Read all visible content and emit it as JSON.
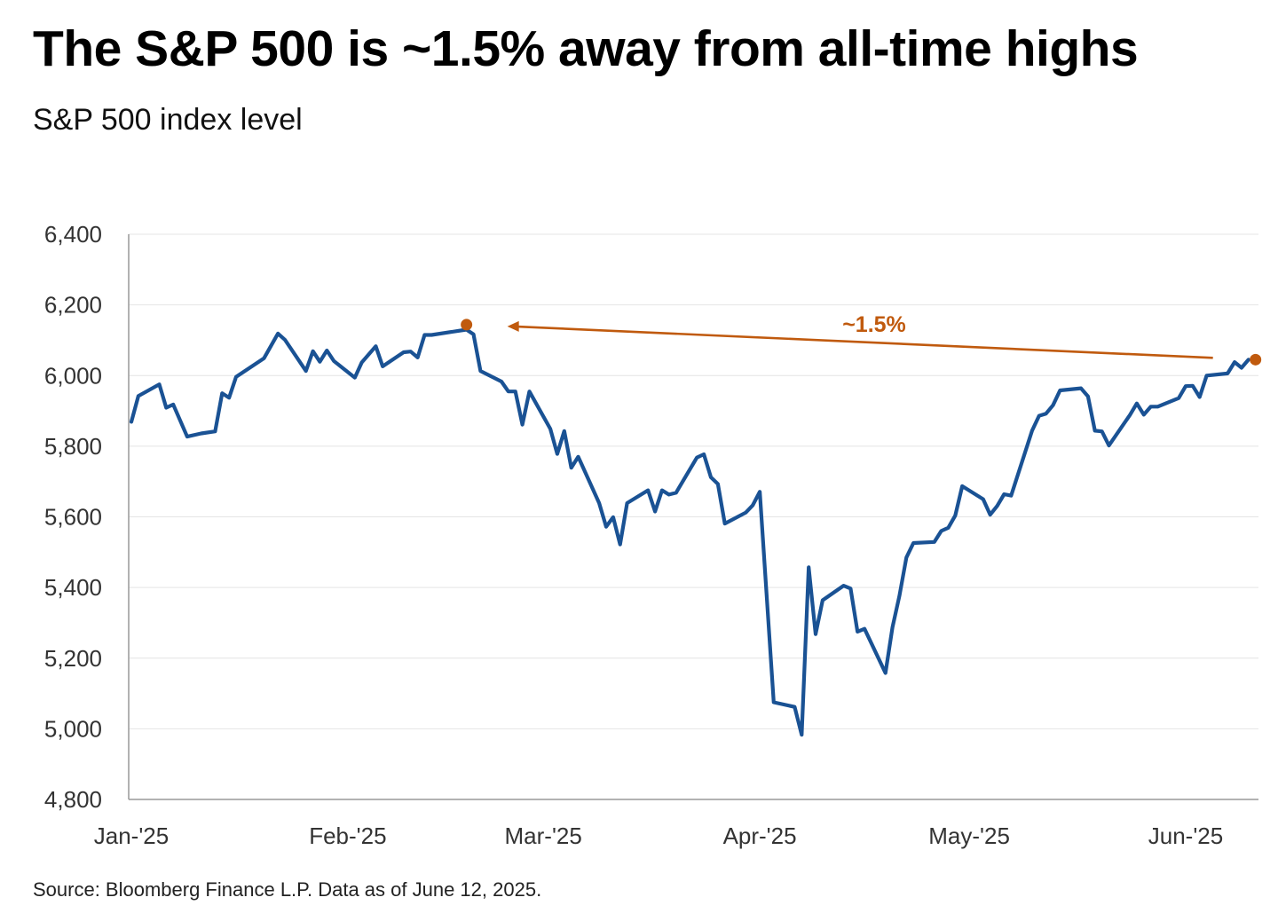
{
  "header": {
    "title": "The S&P 500 is ~1.5% away from all-time highs",
    "subtitle": "S&P 500 index level"
  },
  "footer": {
    "source": "Source: Bloomberg Finance L.P. Data as of June 12, 2025."
  },
  "colors": {
    "line": "#1a5294",
    "accent": "#c05a0e",
    "grid": "#e4e4e4",
    "axis": "#999999"
  },
  "chart_data": {
    "type": "line",
    "title": "The S&P 500 is ~1.5% away from all-time highs",
    "ylabel": "S&P 500 index level",
    "ylim": [
      4800,
      6400
    ],
    "yticks": [
      4800,
      5000,
      5200,
      5400,
      5600,
      5800,
      6000,
      6200,
      6400
    ],
    "ytick_labels": [
      "4,800",
      "5,000",
      "5,200",
      "5,400",
      "5,600",
      "5,800",
      "6,000",
      "6,200",
      "6,400"
    ],
    "x_range_days": [
      0,
      162
    ],
    "xticks": [
      {
        "day": 0,
        "label": "Jan-'25"
      },
      {
        "day": 31,
        "label": "Feb-'25"
      },
      {
        "day": 59,
        "label": "Mar-'25"
      },
      {
        "day": 90,
        "label": "Apr-'25"
      },
      {
        "day": 120,
        "label": "May-'25"
      },
      {
        "day": 151,
        "label": "Jun-'25"
      }
    ],
    "series": [
      {
        "name": "S&P 500",
        "points": [
          [
            0,
            5869
          ],
          [
            1,
            5942
          ],
          [
            4,
            5975
          ],
          [
            5,
            5909
          ],
          [
            6,
            5918
          ],
          [
            8,
            5827
          ],
          [
            10,
            5836
          ],
          [
            12,
            5842
          ],
          [
            13,
            5950
          ],
          [
            14,
            5937
          ],
          [
            15,
            5996
          ],
          [
            19,
            6049
          ],
          [
            21,
            6119
          ],
          [
            22,
            6101
          ],
          [
            25,
            6013
          ],
          [
            26,
            6069
          ],
          [
            27,
            6039
          ],
          [
            28,
            6071
          ],
          [
            29,
            6041
          ],
          [
            32,
            5994
          ],
          [
            33,
            6037
          ],
          [
            35,
            6083
          ],
          [
            36,
            6026
          ],
          [
            39,
            6066
          ],
          [
            40,
            6068
          ],
          [
            41,
            6051
          ],
          [
            42,
            6115
          ],
          [
            43,
            6115
          ],
          [
            48,
            6130
          ],
          [
            49,
            6117
          ],
          [
            50,
            6013
          ],
          [
            53,
            5983
          ],
          [
            54,
            5955
          ],
          [
            55,
            5955
          ],
          [
            56,
            5861
          ],
          [
            57,
            5955
          ],
          [
            60,
            5849
          ],
          [
            61,
            5778
          ],
          [
            62,
            5843
          ],
          [
            63,
            5739
          ],
          [
            64,
            5770
          ],
          [
            67,
            5639
          ],
          [
            68,
            5572
          ],
          [
            69,
            5599
          ],
          [
            70,
            5522
          ],
          [
            71,
            5639
          ],
          [
            74,
            5675
          ],
          [
            75,
            5615
          ],
          [
            76,
            5675
          ],
          [
            77,
            5663
          ],
          [
            78,
            5668
          ],
          [
            81,
            5768
          ],
          [
            82,
            5777
          ],
          [
            83,
            5712
          ],
          [
            84,
            5693
          ],
          [
            85,
            5581
          ],
          [
            88,
            5612
          ],
          [
            89,
            5633
          ],
          [
            90,
            5671
          ],
          [
            92,
            5075
          ],
          [
            95,
            5062
          ],
          [
            96,
            4983
          ],
          [
            97,
            5457
          ],
          [
            98,
            5268
          ],
          [
            99,
            5364
          ],
          [
            102,
            5405
          ],
          [
            103,
            5397
          ],
          [
            104,
            5275
          ],
          [
            105,
            5283
          ],
          [
            108,
            5158
          ],
          [
            109,
            5287
          ],
          [
            110,
            5376
          ],
          [
            111,
            5485
          ],
          [
            112,
            5526
          ],
          [
            115,
            5529
          ],
          [
            116,
            5560
          ],
          [
            117,
            5569
          ],
          [
            118,
            5604
          ],
          [
            119,
            5687
          ],
          [
            122,
            5650
          ],
          [
            123,
            5606
          ],
          [
            124,
            5631
          ],
          [
            125,
            5664
          ],
          [
            126,
            5660
          ],
          [
            129,
            5844
          ],
          [
            130,
            5886
          ],
          [
            131,
            5892
          ],
          [
            132,
            5916
          ],
          [
            133,
            5958
          ],
          [
            136,
            5964
          ],
          [
            137,
            5941
          ],
          [
            138,
            5844
          ],
          [
            139,
            5842
          ],
          [
            140,
            5802
          ],
          [
            143,
            5888
          ],
          [
            144,
            5921
          ],
          [
            145,
            5889
          ],
          [
            146,
            5912
          ],
          [
            147,
            5912
          ],
          [
            150,
            5936
          ],
          [
            151,
            5970
          ],
          [
            152,
            5971
          ],
          [
            153,
            5939
          ],
          [
            154,
            6000
          ],
          [
            157,
            6006
          ],
          [
            158,
            6038
          ],
          [
            159,
            6022
          ],
          [
            160,
            6045
          ]
        ]
      }
    ],
    "annotation": {
      "label": "~1.5%",
      "from": {
        "day": 48,
        "value": 6144
      },
      "to": {
        "day": 161,
        "value": 6045
      }
    }
  }
}
